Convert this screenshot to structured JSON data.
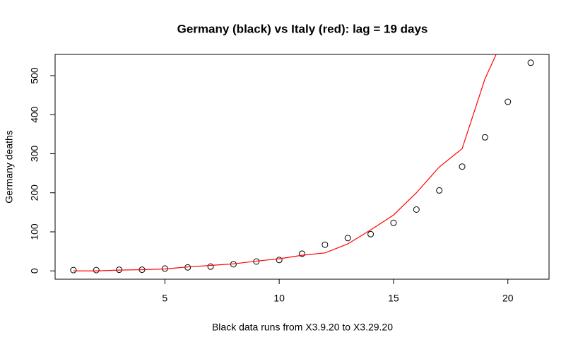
{
  "chart_data": {
    "type": "scatter-line",
    "title": "Germany (black) vs Italy (red): lag = 19 days",
    "xlabel": "Black data runs from X3.9.20 to X3.29.20",
    "ylabel": "Germany deaths",
    "x": [
      1,
      2,
      3,
      4,
      5,
      6,
      7,
      8,
      9,
      10,
      11,
      12,
      13,
      14,
      15,
      16,
      17,
      18,
      19,
      20,
      21
    ],
    "series": [
      {
        "color": "#000000",
        "style": "points",
        "values": [
          2,
          2,
          3,
          3,
          6,
          9,
          11,
          17,
          24,
          28,
          44,
          67,
          84,
          94,
          123,
          157,
          206,
          267,
          342,
          433,
          533
        ]
      },
      {
        "color": "#ff0000",
        "style": "line",
        "values": [
          0,
          0,
          2,
          3,
          5,
          10,
          14,
          18,
          25,
          31,
          40,
          46,
          69,
          105,
          143,
          200,
          266,
          313,
          492,
          620,
          null
        ]
      }
    ],
    "xlim": [
      0.2,
      21.8
    ],
    "ylim": [
      -21.3,
      554.3
    ],
    "xticks": [
      5,
      10,
      15,
      20
    ],
    "yticks": [
      0,
      100,
      200,
      300,
      400,
      500
    ]
  }
}
